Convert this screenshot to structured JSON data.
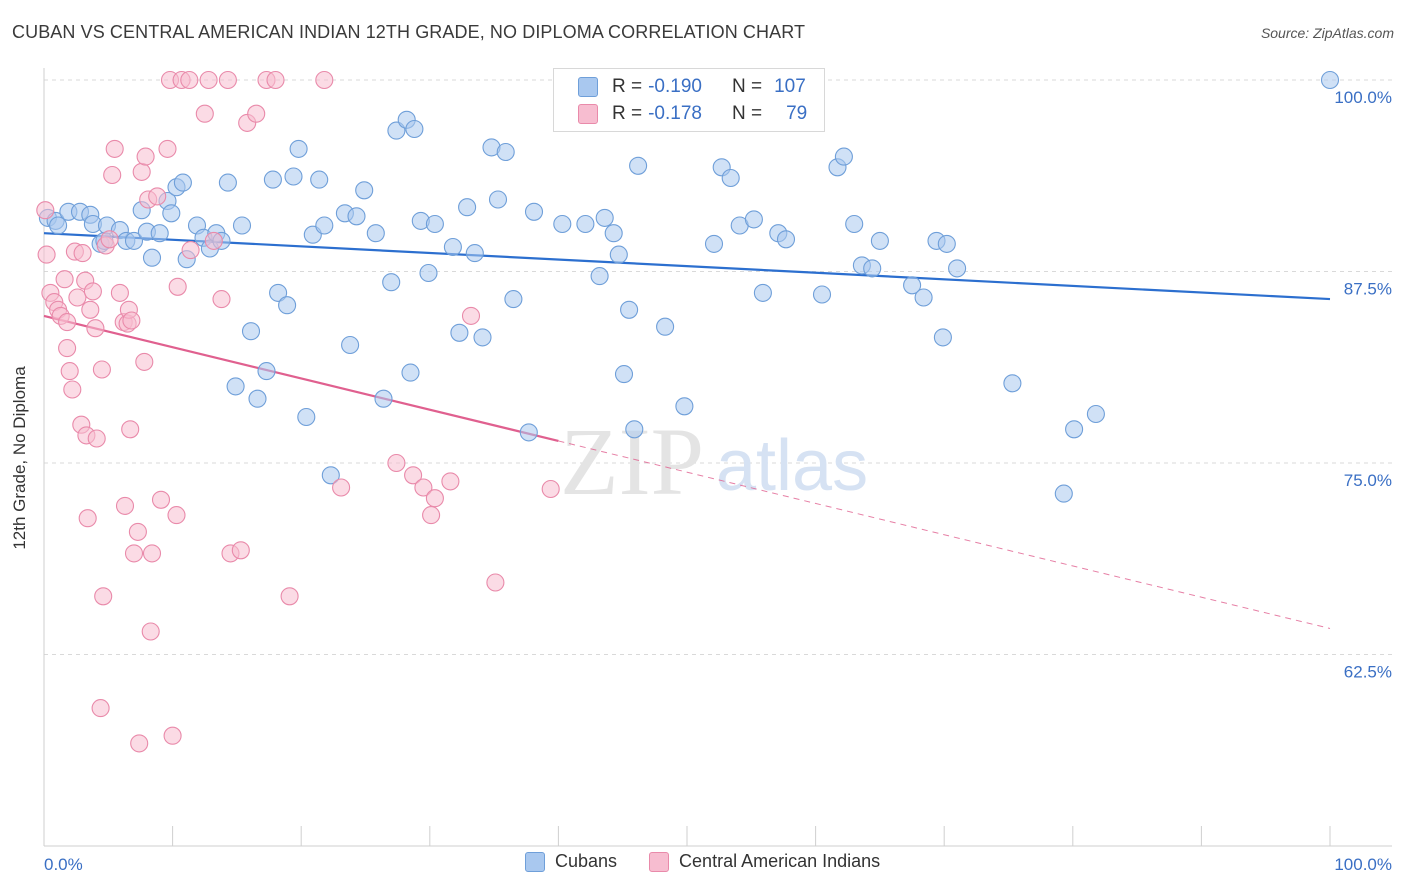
{
  "title": "CUBAN VS CENTRAL AMERICAN INDIAN 12TH GRADE, NO DIPLOMA CORRELATION CHART",
  "source": "Source: ZipAtlas.com",
  "watermark": {
    "zip": "ZIP",
    "atlas": "atlas"
  },
  "legend_top": [
    {
      "r_label": "R =",
      "r_value": "-0.190",
      "n_label": "N =",
      "n_value": "107",
      "color": "#a9c8ef",
      "border": "#6f9fd9"
    },
    {
      "r_label": "R =",
      "r_value": "-0.178",
      "n_label": "N =",
      "n_value": "79",
      "color": "#f7bdd0",
      "border": "#e98aaa"
    }
  ],
  "legend_bottom": [
    {
      "label": "Cubans",
      "color": "#a9c8ef",
      "border": "#6f9fd9"
    },
    {
      "label": "Central American Indians",
      "color": "#f7bdd0",
      "border": "#e98aaa"
    }
  ],
  "chart_data": {
    "type": "scatter",
    "title": "CUBAN VS CENTRAL AMERICAN INDIAN 12TH GRADE, NO DIPLOMA CORRELATION CHART",
    "xlabel": "",
    "ylabel": "12th Grade, No Diploma",
    "xlim": [
      0,
      100
    ],
    "ylim": [
      52,
      102
    ],
    "x_tick_labels": [
      "0.0%",
      "100.0%"
    ],
    "y_ticks": [
      {
        "value": 100,
        "label": "100.0%"
      },
      {
        "value": 87.5,
        "label": "87.5%"
      },
      {
        "value": 75,
        "label": "75.0%"
      },
      {
        "value": 62.5,
        "label": "62.5%"
      }
    ],
    "grid": true,
    "legend_position": "top-center",
    "series": [
      {
        "name": "Cubans",
        "color": "#6f9fd9",
        "fill": "#a9c8ef",
        "trend": {
          "x0": 0,
          "y0": 90.0,
          "x1": 100,
          "y1": 85.7,
          "dashed_from": null
        },
        "points": [
          [
            0.3,
            91.0
          ],
          [
            0.9,
            90.8
          ],
          [
            1.1,
            90.5
          ],
          [
            1.9,
            91.4
          ],
          [
            2.8,
            91.4
          ],
          [
            3.6,
            91.2
          ],
          [
            3.8,
            90.6
          ],
          [
            4.4,
            89.3
          ],
          [
            4.7,
            89.5
          ],
          [
            4.9,
            90.5
          ],
          [
            5.9,
            90.2
          ],
          [
            6.4,
            89.5
          ],
          [
            7.0,
            89.5
          ],
          [
            7.6,
            91.5
          ],
          [
            8.0,
            90.1
          ],
          [
            8.4,
            88.4
          ],
          [
            9.0,
            90.0
          ],
          [
            9.6,
            92.1
          ],
          [
            9.9,
            91.3
          ],
          [
            10.3,
            93.0
          ],
          [
            10.8,
            93.3
          ],
          [
            11.1,
            88.3
          ],
          [
            11.9,
            90.5
          ],
          [
            12.4,
            89.7
          ],
          [
            12.9,
            89.0
          ],
          [
            13.4,
            90.0
          ],
          [
            13.8,
            89.5
          ],
          [
            14.3,
            93.3
          ],
          [
            14.9,
            80.0
          ],
          [
            15.4,
            90.5
          ],
          [
            16.1,
            83.6
          ],
          [
            16.6,
            79.2
          ],
          [
            17.3,
            81.0
          ],
          [
            17.8,
            93.5
          ],
          [
            18.2,
            86.1
          ],
          [
            18.9,
            85.3
          ],
          [
            19.4,
            93.7
          ],
          [
            19.8,
            95.5
          ],
          [
            20.4,
            78.0
          ],
          [
            20.9,
            89.9
          ],
          [
            21.4,
            93.5
          ],
          [
            21.8,
            90.5
          ],
          [
            22.3,
            74.2
          ],
          [
            23.4,
            91.3
          ],
          [
            23.8,
            82.7
          ],
          [
            24.3,
            91.1
          ],
          [
            24.9,
            92.8
          ],
          [
            25.8,
            90.0
          ],
          [
            26.4,
            79.2
          ],
          [
            27.0,
            86.8
          ],
          [
            27.4,
            96.7
          ],
          [
            28.2,
            97.4
          ],
          [
            28.5,
            80.9
          ],
          [
            28.8,
            96.8
          ],
          [
            29.3,
            90.8
          ],
          [
            29.9,
            87.4
          ],
          [
            30.4,
            90.6
          ],
          [
            31.8,
            89.1
          ],
          [
            32.3,
            83.5
          ],
          [
            32.9,
            91.7
          ],
          [
            33.5,
            88.7
          ],
          [
            34.1,
            83.2
          ],
          [
            34.8,
            95.6
          ],
          [
            35.3,
            92.2
          ],
          [
            35.9,
            95.3
          ],
          [
            36.5,
            85.7
          ],
          [
            37.7,
            77.0
          ],
          [
            38.1,
            91.4
          ],
          [
            40.3,
            90.6
          ],
          [
            42.1,
            90.6
          ],
          [
            43.2,
            87.2
          ],
          [
            43.6,
            91.0
          ],
          [
            44.3,
            90.0
          ],
          [
            44.7,
            88.6
          ],
          [
            45.1,
            80.8
          ],
          [
            45.5,
            85.0
          ],
          [
            45.9,
            77.2
          ],
          [
            46.2,
            94.4
          ],
          [
            48.3,
            83.9
          ],
          [
            49.8,
            78.7
          ],
          [
            52.1,
            89.3
          ],
          [
            52.7,
            94.3
          ],
          [
            53.4,
            93.6
          ],
          [
            54.1,
            90.5
          ],
          [
            55.2,
            90.9
          ],
          [
            55.9,
            86.1
          ],
          [
            57.1,
            90.0
          ],
          [
            57.7,
            89.6
          ],
          [
            60.5,
            86.0
          ],
          [
            61.7,
            94.3
          ],
          [
            62.2,
            95.0
          ],
          [
            63.0,
            90.6
          ],
          [
            63.6,
            87.9
          ],
          [
            64.4,
            87.7
          ],
          [
            65.0,
            89.5
          ],
          [
            67.5,
            86.6
          ],
          [
            68.4,
            85.8
          ],
          [
            69.4,
            89.5
          ],
          [
            69.9,
            83.2
          ],
          [
            70.2,
            89.3
          ],
          [
            71.0,
            87.7
          ],
          [
            75.3,
            80.2
          ],
          [
            79.3,
            73.0
          ],
          [
            80.1,
            77.2
          ],
          [
            81.8,
            78.2
          ],
          [
            100.0,
            100.0
          ]
        ]
      },
      {
        "name": "Central American Indians",
        "color": "#e98aaa",
        "fill": "#f7bdd0",
        "trend": {
          "x0": 0,
          "y0": 84.6,
          "x1": 100,
          "y1": 64.2,
          "dashed_from": 40
        },
        "points": [
          [
            0.1,
            91.5
          ],
          [
            0.2,
            88.6
          ],
          [
            0.5,
            86.1
          ],
          [
            0.8,
            85.5
          ],
          [
            1.1,
            85.0
          ],
          [
            1.3,
            84.6
          ],
          [
            1.6,
            87.0
          ],
          [
            1.8,
            84.2
          ],
          [
            1.8,
            82.5
          ],
          [
            2.0,
            81.0
          ],
          [
            2.2,
            79.8
          ],
          [
            2.4,
            88.8
          ],
          [
            2.6,
            85.8
          ],
          [
            2.9,
            77.5
          ],
          [
            3.0,
            88.7
          ],
          [
            3.2,
            86.9
          ],
          [
            3.3,
            76.8
          ],
          [
            3.4,
            71.4
          ],
          [
            3.6,
            85.0
          ],
          [
            3.8,
            86.2
          ],
          [
            4.0,
            83.8
          ],
          [
            4.1,
            76.6
          ],
          [
            4.4,
            59.0
          ],
          [
            4.5,
            81.1
          ],
          [
            4.6,
            66.3
          ],
          [
            4.8,
            89.2
          ],
          [
            5.1,
            89.6
          ],
          [
            5.3,
            93.8
          ],
          [
            5.5,
            95.5
          ],
          [
            5.9,
            86.1
          ],
          [
            6.2,
            84.2
          ],
          [
            6.3,
            72.2
          ],
          [
            6.5,
            84.1
          ],
          [
            6.6,
            85.0
          ],
          [
            6.7,
            77.2
          ],
          [
            6.8,
            84.3
          ],
          [
            7.0,
            69.1
          ],
          [
            7.3,
            70.5
          ],
          [
            7.4,
            56.7
          ],
          [
            7.6,
            94.0
          ],
          [
            7.8,
            81.6
          ],
          [
            7.9,
            95.0
          ],
          [
            8.1,
            92.2
          ],
          [
            8.3,
            64.0
          ],
          [
            8.4,
            69.1
          ],
          [
            8.8,
            92.4
          ],
          [
            9.1,
            72.6
          ],
          [
            9.6,
            95.5
          ],
          [
            9.8,
            100.0
          ],
          [
            10.0,
            57.2
          ],
          [
            10.3,
            71.6
          ],
          [
            10.4,
            86.5
          ],
          [
            10.7,
            100.0
          ],
          [
            11.3,
            100.0
          ],
          [
            11.4,
            88.9
          ],
          [
            12.5,
            97.8
          ],
          [
            12.8,
            100.0
          ],
          [
            13.2,
            89.5
          ],
          [
            13.8,
            85.7
          ],
          [
            14.3,
            100.0
          ],
          [
            14.5,
            69.1
          ],
          [
            15.3,
            69.3
          ],
          [
            15.8,
            97.2
          ],
          [
            16.5,
            97.8
          ],
          [
            17.3,
            100.0
          ],
          [
            18.0,
            100.0
          ],
          [
            19.1,
            66.3
          ],
          [
            21.8,
            100.0
          ],
          [
            23.1,
            73.4
          ],
          [
            27.4,
            75.0
          ],
          [
            28.7,
            74.2
          ],
          [
            29.5,
            73.4
          ],
          [
            30.1,
            71.6
          ],
          [
            30.4,
            72.7
          ],
          [
            31.6,
            73.8
          ],
          [
            33.2,
            84.6
          ],
          [
            35.1,
            67.2
          ],
          [
            39.4,
            73.3
          ]
        ]
      }
    ]
  }
}
